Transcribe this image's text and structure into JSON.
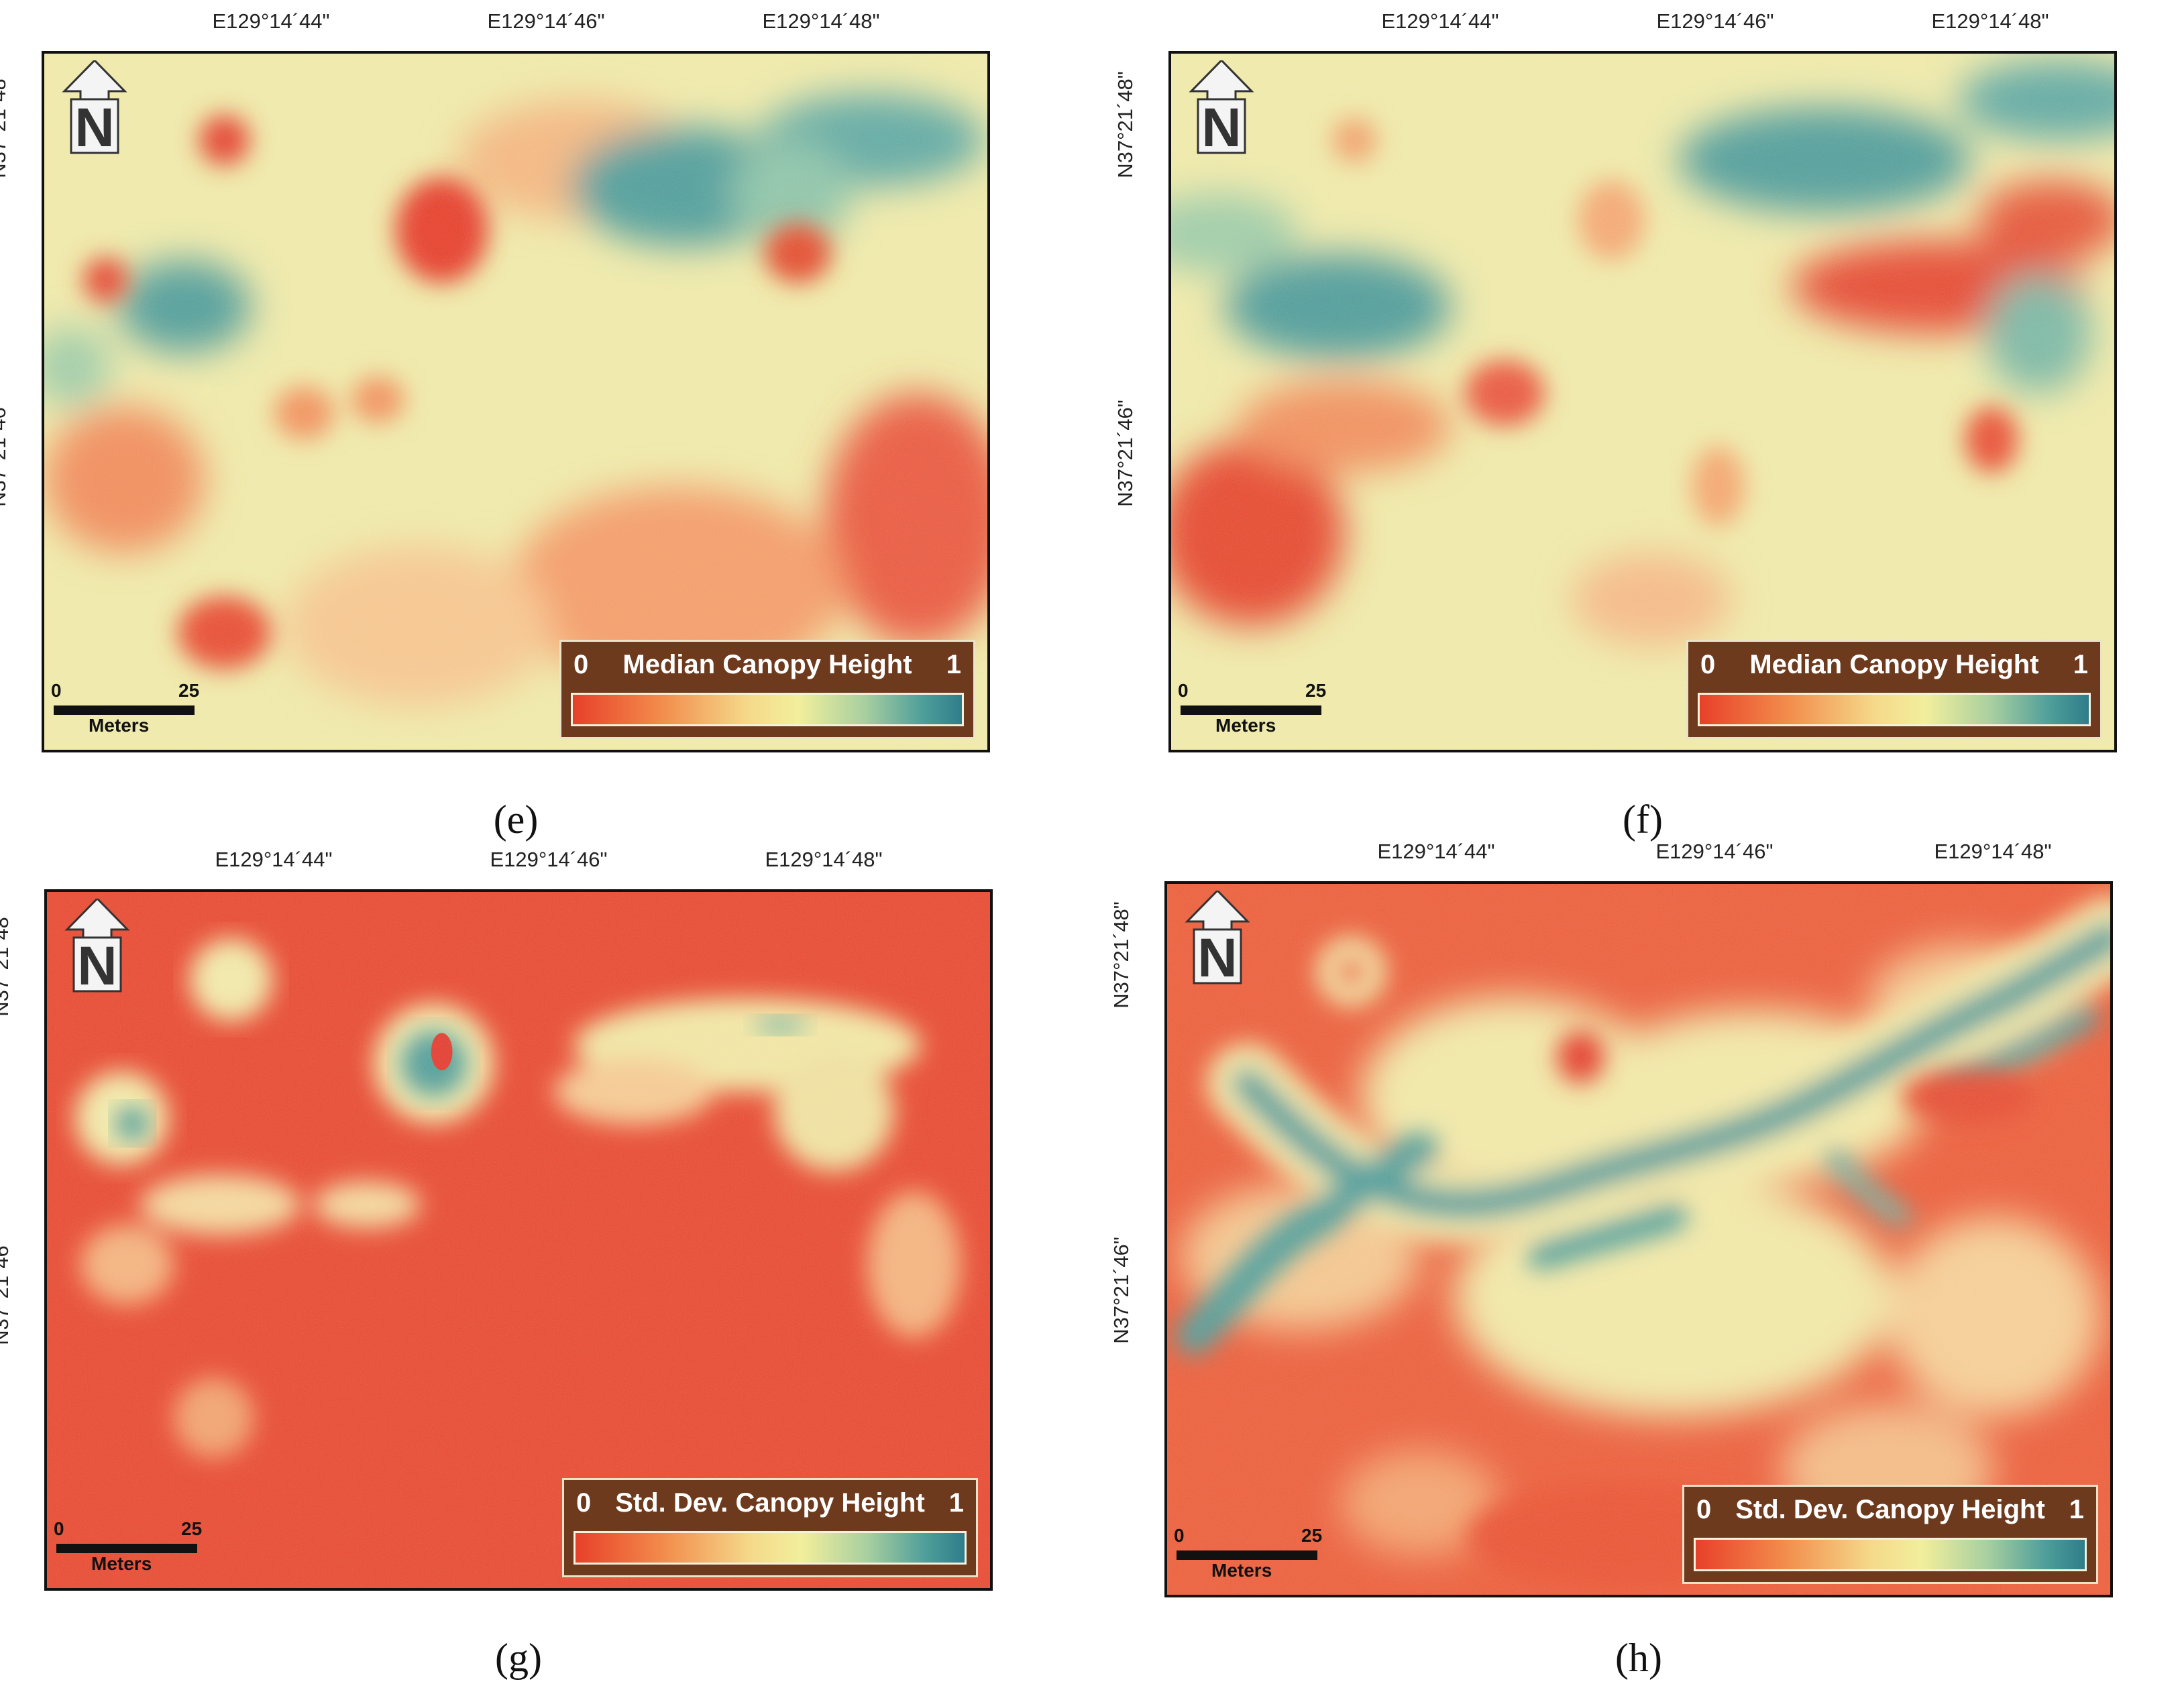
{
  "north_arrow": {
    "letter": "N",
    "icon": "north-arrow-icon"
  },
  "scale": {
    "zero": "0",
    "max": "25",
    "unit": "Meters"
  },
  "axes": {
    "lon_labels": [
      "E129°14´44\"",
      "E129°14´46\"",
      "E129°14´48\""
    ],
    "lat_labels": [
      "N37°21´48\"",
      "N37°21´46\""
    ]
  },
  "legend_colors": {
    "low": "#e8402a",
    "mid": "#f2ef9c",
    "high": "#2f7d8a"
  },
  "panels": {
    "e": {
      "caption": "(e)",
      "legend_min": "0",
      "legend_title": "Median Canopy Height",
      "legend_max": "1"
    },
    "f": {
      "caption": "(f)",
      "legend_min": "0",
      "legend_title": "Median Canopy Height",
      "legend_max": "1"
    },
    "g": {
      "caption": "(g)",
      "legend_min": "0",
      "legend_title": "Std. Dev. Canopy Height",
      "legend_max": "1"
    },
    "h": {
      "caption": "(h)",
      "legend_min": "0",
      "legend_title": "Std. Dev. Canopy Height",
      "legend_max": "1"
    }
  }
}
